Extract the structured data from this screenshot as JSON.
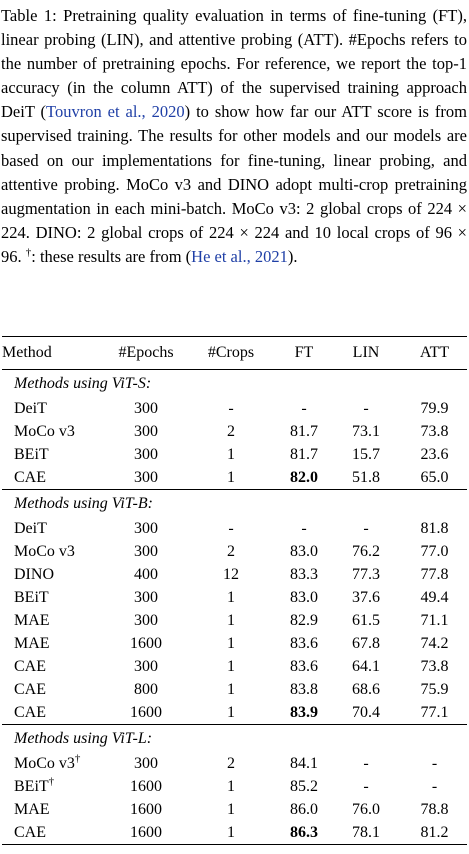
{
  "caption": {
    "label": "Table 1:",
    "text_a": "Pretraining quality evaluation in terms of fine-tuning (FT), linear probing (LIN), and attentive probing (ATT). #Epochs refers to the number of pretraining epochs. For reference, we report the top-1 accuracy (in the column ATT) of the supervised training approach DeiT (",
    "cite_a": "Touvron et al., 2020",
    "text_b": ") to show how far our ATT score is from supervised training. The results for other models and our models are based on our implementations for fine-tuning, linear probing, and attentive probing. MoCo v3 and DINO adopt multi-crop pretraining augmentation in each mini-batch. MoCo v3: 2 global crops of 224 × 224. DINO: 2 global crops of 224 × 224 and 10 local crops of 96 × 96. ",
    "dagger": "†",
    "text_c": ": these results are from (",
    "cite_b": "He et al., 2021",
    "text_d": ")."
  },
  "table": {
    "columns": [
      "Method",
      "#Epochs",
      "#Crops",
      "FT",
      "LIN",
      "ATT"
    ],
    "groups": [
      {
        "title": "Methods using ViT-S:",
        "rows": [
          {
            "method": "DeiT",
            "epochs": "300",
            "crops": "-",
            "ft": "-",
            "lin": "-",
            "att": "79.9"
          },
          {
            "method": "MoCo v3",
            "epochs": "300",
            "crops": "2",
            "ft": "81.7",
            "lin": "73.1",
            "att": "73.8"
          },
          {
            "method": "BEiT",
            "epochs": "300",
            "crops": "1",
            "ft": "81.7",
            "lin": "15.7",
            "att": "23.6"
          },
          {
            "method": "CAE",
            "epochs": "300",
            "crops": "1",
            "ft": "82.0",
            "lin": "51.8",
            "att": "65.0",
            "bold_ft": true
          }
        ]
      },
      {
        "title": "Methods using ViT-B:",
        "rows": [
          {
            "method": "DeiT",
            "epochs": "300",
            "crops": "-",
            "ft": "-",
            "lin": "-",
            "att": "81.8"
          },
          {
            "method": "MoCo v3",
            "epochs": "300",
            "crops": "2",
            "ft": "83.0",
            "lin": "76.2",
            "att": "77.0"
          },
          {
            "method": "DINO",
            "epochs": "400",
            "crops": "12",
            "ft": "83.3",
            "lin": "77.3",
            "att": "77.8"
          },
          {
            "method": "BEiT",
            "epochs": "300",
            "crops": "1",
            "ft": "83.0",
            "lin": "37.6",
            "att": "49.4"
          },
          {
            "method": "MAE",
            "epochs": "300",
            "crops": "1",
            "ft": "82.9",
            "lin": "61.5",
            "att": "71.1"
          },
          {
            "method": "MAE",
            "epochs": "1600",
            "crops": "1",
            "ft": "83.6",
            "lin": "67.8",
            "att": "74.2"
          },
          {
            "method": "CAE",
            "epochs": "300",
            "crops": "1",
            "ft": "83.6",
            "lin": "64.1",
            "att": "73.8"
          },
          {
            "method": "CAE",
            "epochs": "800",
            "crops": "1",
            "ft": "83.8",
            "lin": "68.6",
            "att": "75.9"
          },
          {
            "method": "CAE",
            "epochs": "1600",
            "crops": "1",
            "ft": "83.9",
            "lin": "70.4",
            "att": "77.1",
            "bold_ft": true
          }
        ]
      },
      {
        "title": "Methods using ViT-L:",
        "rows": [
          {
            "method": "MoCo v3",
            "sup": "†",
            "epochs": "300",
            "crops": "2",
            "ft": "84.1",
            "lin": "-",
            "att": "-"
          },
          {
            "method": "BEiT",
            "sup": "†",
            "epochs": "1600",
            "crops": "1",
            "ft": "85.2",
            "lin": "-",
            "att": "-"
          },
          {
            "method": "MAE",
            "epochs": "1600",
            "crops": "1",
            "ft": "86.0",
            "lin": "76.0",
            "att": "78.8"
          },
          {
            "method": "CAE",
            "epochs": "1600",
            "crops": "1",
            "ft": "86.3",
            "lin": "78.1",
            "att": "81.2",
            "bold_ft": true
          }
        ]
      }
    ]
  }
}
